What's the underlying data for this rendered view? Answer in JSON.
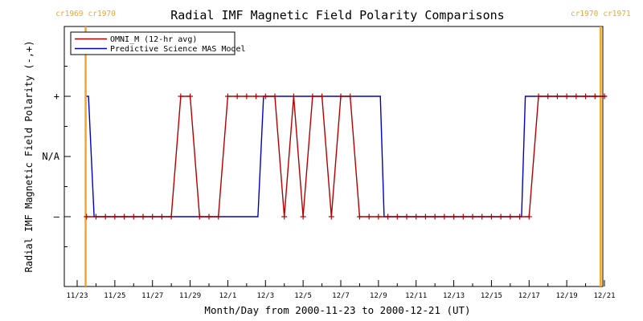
{
  "chart_data": {
    "type": "line",
    "title": "Radial IMF Magnetic Field Polarity Comparisons",
    "xlabel": "Month/Day from 2000-11-23 to 2000-12-21 (UT)",
    "ylabel": "Radial IMF Magnetic Field Polarity (-,+)",
    "x_range_days": [
      0,
      28
    ],
    "y_range": [
      -2,
      2
    ],
    "x_ticks": [
      {
        "day": 0,
        "label": "11/23"
      },
      {
        "day": 2,
        "label": "11/25"
      },
      {
        "day": 4,
        "label": "11/27"
      },
      {
        "day": 6,
        "label": "11/29"
      },
      {
        "day": 8,
        "label": "12/1"
      },
      {
        "day": 10,
        "label": "12/3"
      },
      {
        "day": 12,
        "label": "12/5"
      },
      {
        "day": 14,
        "label": "12/7"
      },
      {
        "day": 16,
        "label": "12/9"
      },
      {
        "day": 18,
        "label": "12/11"
      },
      {
        "day": 20,
        "label": "12/13"
      },
      {
        "day": 22,
        "label": "12/15"
      },
      {
        "day": 24,
        "label": "12/17"
      },
      {
        "day": 26,
        "label": "12/19"
      },
      {
        "day": 28,
        "label": "12/21"
      }
    ],
    "y_ticks": [
      {
        "value": 1,
        "label": "+"
      },
      {
        "value": 0,
        "label": "N/A"
      },
      {
        "value": -1,
        "label": "–"
      }
    ],
    "legend_position": "top-left",
    "markers": [
      {
        "day": 0.45,
        "left_label": "cr1969",
        "right_label": "cr1970",
        "color": "#f5a623"
      },
      {
        "day": 27.8,
        "left_label": "cr1970",
        "right_label": "cr1971",
        "color": "#f5a623"
      }
    ],
    "series": [
      {
        "name": "OMNI_M (12-hr avg)",
        "color": "#b20000",
        "marker": "plus",
        "points": [
          [
            0.5,
            -1
          ],
          [
            1.0,
            -1
          ],
          [
            1.5,
            -1
          ],
          [
            2.0,
            -1
          ],
          [
            2.5,
            -1
          ],
          [
            3.0,
            -1
          ],
          [
            3.5,
            -1
          ],
          [
            4.0,
            -1
          ],
          [
            4.5,
            -1
          ],
          [
            5.0,
            -1
          ],
          [
            5.5,
            1
          ],
          [
            6.0,
            1
          ],
          [
            6.5,
            -1
          ],
          [
            7.0,
            -1
          ],
          [
            7.5,
            -1
          ],
          [
            8.0,
            1
          ],
          [
            8.5,
            1
          ],
          [
            9.0,
            1
          ],
          [
            9.5,
            1
          ],
          [
            10.0,
            1
          ],
          [
            10.5,
            1
          ],
          [
            11.0,
            -1
          ],
          [
            11.5,
            1
          ],
          [
            12.0,
            -1
          ],
          [
            12.5,
            1
          ],
          [
            13.0,
            1
          ],
          [
            13.5,
            -1
          ],
          [
            14.0,
            1
          ],
          [
            14.5,
            1
          ],
          [
            15.0,
            -1
          ],
          [
            15.5,
            -1
          ],
          [
            16.0,
            -1
          ],
          [
            16.5,
            -1
          ],
          [
            17.0,
            -1
          ],
          [
            17.5,
            -1
          ],
          [
            18.0,
            -1
          ],
          [
            18.5,
            -1
          ],
          [
            19.0,
            -1
          ],
          [
            19.5,
            -1
          ],
          [
            20.0,
            -1
          ],
          [
            20.5,
            -1
          ],
          [
            21.0,
            -1
          ],
          [
            21.5,
            -1
          ],
          [
            22.0,
            -1
          ],
          [
            22.5,
            -1
          ],
          [
            23.0,
            -1
          ],
          [
            23.5,
            -1
          ],
          [
            24.0,
            -1
          ],
          [
            24.5,
            1
          ],
          [
            25.0,
            1
          ],
          [
            25.5,
            1
          ],
          [
            26.0,
            1
          ],
          [
            26.5,
            1
          ],
          [
            27.0,
            1
          ],
          [
            27.5,
            1
          ],
          [
            28.0,
            1
          ]
        ]
      },
      {
        "name": "Predictive Science MAS Model",
        "color": "#0000c8",
        "marker": "none",
        "points": [
          [
            0.5,
            1
          ],
          [
            0.6,
            1
          ],
          [
            0.9,
            -1
          ],
          [
            9.6,
            -1
          ],
          [
            9.9,
            1
          ],
          [
            16.1,
            1
          ],
          [
            16.3,
            -1
          ],
          [
            23.6,
            -1
          ],
          [
            23.8,
            1
          ],
          [
            28.1,
            1
          ]
        ]
      }
    ]
  }
}
